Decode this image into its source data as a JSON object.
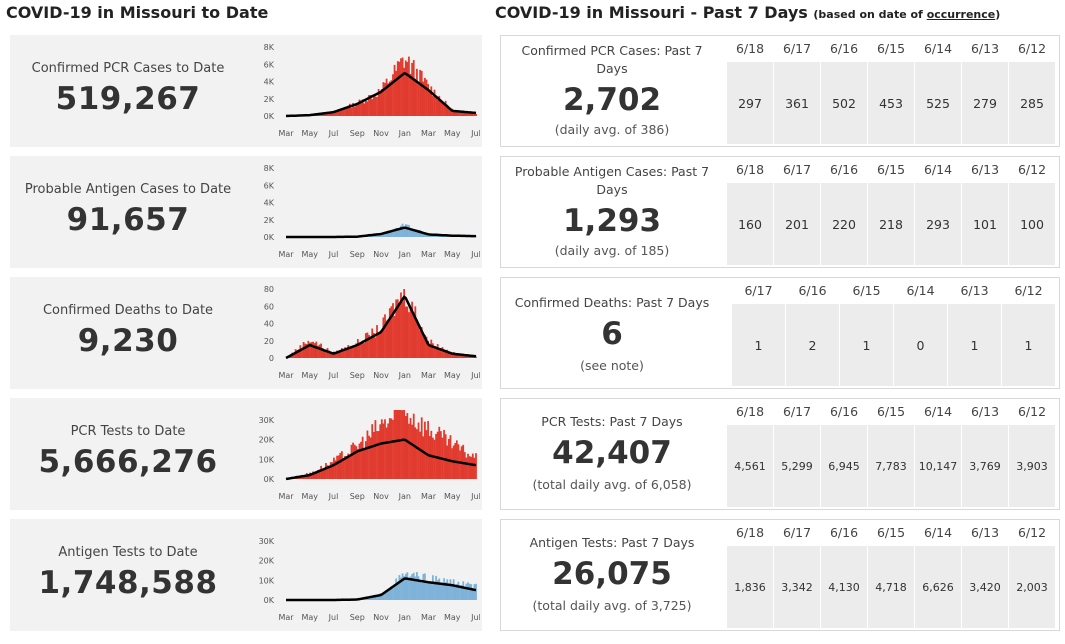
{
  "headers": {
    "left_title": "COVID-19 in Missouri to Date",
    "right_title": "COVID-19 in Missouri - Past 7 Days",
    "right_note_prefix": "(based on date of ",
    "right_note_link": "occurrence",
    "right_note_suffix": ")"
  },
  "colors": {
    "red": "#e03b2e",
    "blue": "#7fb2d8",
    "avg_line": "#000000",
    "card_bg": "#f2f2f2",
    "cell_bg": "#ececec"
  },
  "x_ticks": [
    "Mar",
    "May",
    "Jul",
    "Sep",
    "Nov",
    "Jan",
    "Mar",
    "May",
    "Jul"
  ],
  "cumulative": [
    {
      "label": "Confirmed PCR Cases to Date",
      "value": "519,267",
      "chart_kind": "red",
      "y_ticks": [
        "8K",
        "6K",
        "4K",
        "2K",
        "0K"
      ],
      "y_max": 8000,
      "chart_data": {
        "type": "bar",
        "title": "",
        "series_color": "red",
        "x": [
          "Mar",
          "May",
          "Jul",
          "Sep",
          "Nov",
          "Jan",
          "Mar",
          "May",
          "Jul"
        ],
        "values": [
          0,
          100,
          500,
          1500,
          3000,
          6800,
          3500,
          700,
          300
        ],
        "avg": [
          0,
          100,
          450,
          1400,
          2800,
          5000,
          3000,
          600,
          350
        ],
        "ylim": [
          0,
          8000
        ]
      }
    },
    {
      "label": "Probable Antigen Cases to Date",
      "value": "91,657",
      "chart_kind": "blue",
      "y_ticks": [
        "8K",
        "6K",
        "4K",
        "2K",
        "0K"
      ],
      "y_max": 8000,
      "chart_data": {
        "type": "bar",
        "title": "",
        "series_color": "blue",
        "x": [
          "Mar",
          "May",
          "Jul",
          "Sep",
          "Nov",
          "Jan",
          "Mar",
          "May",
          "Jul"
        ],
        "values": [
          0,
          0,
          0,
          50,
          400,
          1400,
          300,
          150,
          100
        ],
        "avg": [
          0,
          0,
          0,
          40,
          350,
          1100,
          300,
          150,
          100
        ],
        "ylim": [
          0,
          8000
        ]
      }
    },
    {
      "label": "Confirmed Deaths to Date",
      "value": "9,230",
      "chart_kind": "red",
      "y_ticks": [
        "80",
        "60",
        "40",
        "20",
        "0"
      ],
      "y_max": 80,
      "chart_data": {
        "type": "bar",
        "title": "",
        "series_color": "red",
        "x": [
          "Mar",
          "May",
          "Jul",
          "Sep",
          "Nov",
          "Jan",
          "Mar",
          "May",
          "Jul"
        ],
        "values": [
          0,
          22,
          6,
          18,
          35,
          80,
          20,
          6,
          2
        ],
        "avg": [
          0,
          15,
          5,
          15,
          30,
          72,
          15,
          5,
          2
        ],
        "ylim": [
          0,
          80
        ]
      }
    },
    {
      "label": "PCR Tests to Date",
      "value": "5,666,276",
      "chart_kind": "red",
      "y_ticks": [
        "30K",
        "20K",
        "10K",
        "0K"
      ],
      "y_max": 35000,
      "chart_data": {
        "type": "bar",
        "title": "",
        "series_color": "red",
        "x": [
          "Mar",
          "May",
          "Jul",
          "Sep",
          "Nov",
          "Jan",
          "Mar",
          "May",
          "Jul"
        ],
        "values": [
          0,
          3000,
          9000,
          17000,
          28000,
          36000,
          26000,
          18000,
          11000
        ],
        "avg": [
          0,
          2000,
          7000,
          14000,
          18000,
          20000,
          12000,
          9000,
          7000
        ],
        "ylim": [
          0,
          35000
        ]
      }
    },
    {
      "label": "Antigen Tests to Date",
      "value": "1,748,588",
      "chart_kind": "blue",
      "y_ticks": [
        "30K",
        "20K",
        "10K",
        "0K"
      ],
      "y_max": 35000,
      "chart_data": {
        "type": "bar",
        "title": "",
        "series_color": "blue",
        "x": [
          "Mar",
          "May",
          "Jul",
          "Sep",
          "Nov",
          "Jan",
          "Mar",
          "May",
          "Jul"
        ],
        "values": [
          0,
          0,
          0,
          300,
          3000,
          13000,
          11000,
          9000,
          7000
        ],
        "avg": [
          0,
          0,
          0,
          250,
          2500,
          11000,
          9000,
          7500,
          5000
        ],
        "ylim": [
          0,
          35000
        ]
      }
    }
  ],
  "weekly": [
    {
      "label": "Confirmed PCR Cases: Past 7 Days",
      "value": "2,702",
      "sub": "(daily avg. of 386)",
      "dates": [
        "6/18",
        "6/17",
        "6/16",
        "6/15",
        "6/14",
        "6/13",
        "6/12"
      ],
      "values": [
        "297",
        "361",
        "502",
        "453",
        "525",
        "279",
        "285"
      ]
    },
    {
      "label": "Probable Antigen Cases: Past 7 Days",
      "value": "1,293",
      "sub": "(daily avg. of 185)",
      "dates": [
        "6/18",
        "6/17",
        "6/16",
        "6/15",
        "6/14",
        "6/13",
        "6/12"
      ],
      "values": [
        "160",
        "201",
        "220",
        "218",
        "293",
        "101",
        "100"
      ]
    },
    {
      "label": "Confirmed Deaths: Past 7 Days",
      "value": "6",
      "sub": "(see note)",
      "dates": [
        "6/17",
        "6/16",
        "6/15",
        "6/14",
        "6/13",
        "6/12"
      ],
      "values": [
        "1",
        "2",
        "1",
        "0",
        "1",
        "1"
      ]
    },
    {
      "label": "PCR Tests: Past 7 Days",
      "value": "42,407",
      "sub": "(total daily avg. of 6,058)",
      "dates": [
        "6/18",
        "6/17",
        "6/16",
        "6/15",
        "6/14",
        "6/13",
        "6/12"
      ],
      "values": [
        "4,561",
        "5,299",
        "6,945",
        "7,783",
        "10,147",
        "3,769",
        "3,903"
      ]
    },
    {
      "label": "Antigen Tests: Past 7 Days",
      "value": "26,075",
      "sub": "(total daily avg. of 3,725)",
      "dates": [
        "6/18",
        "6/17",
        "6/16",
        "6/15",
        "6/14",
        "6/13",
        "6/12"
      ],
      "values": [
        "1,836",
        "3,342",
        "4,130",
        "4,718",
        "6,626",
        "3,420",
        "2,003"
      ]
    }
  ]
}
